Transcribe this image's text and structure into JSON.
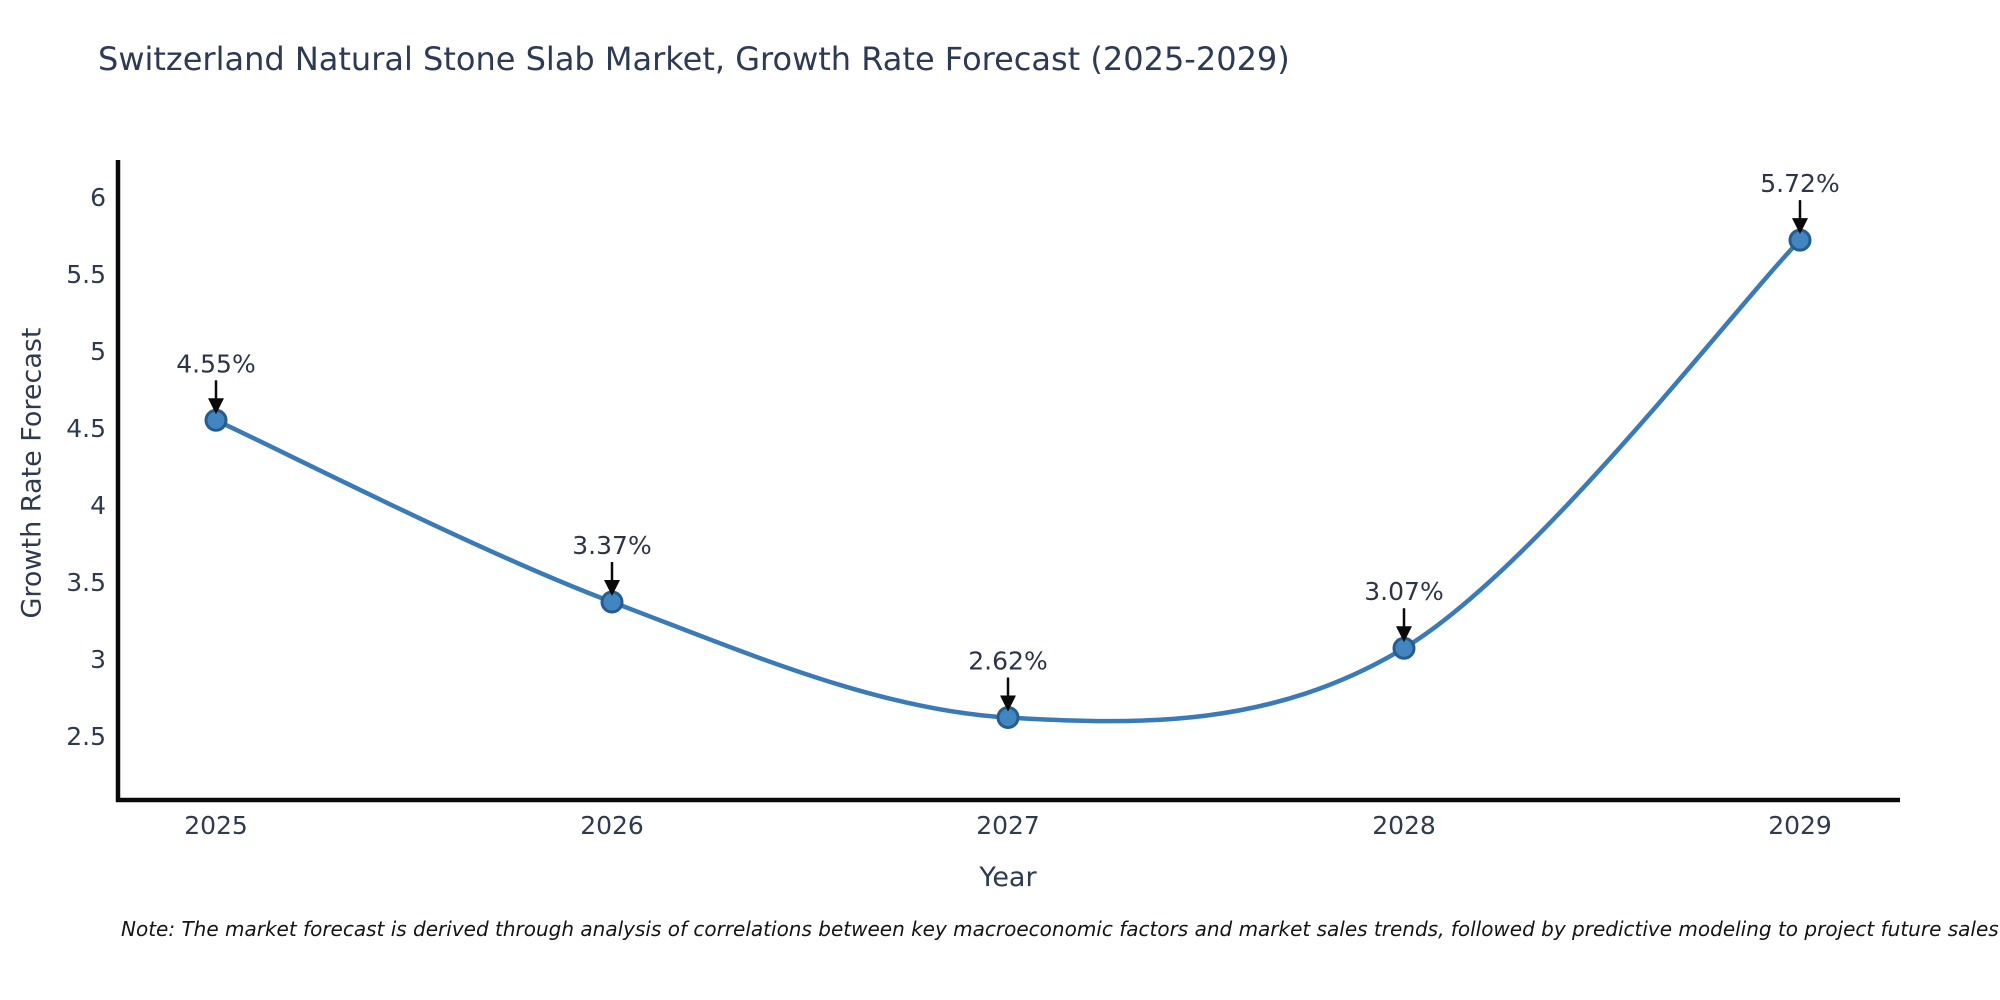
{
  "figure": {
    "note": "Note: The market forecast is derived through analysis of correlations between key macroeconomic factors and market sales trends, followed by predictive modeling to project future sales"
  },
  "chart_data": {
    "type": "line",
    "title": "Switzerland Natural Stone Slab Market, Growth Rate Forecast (2025-2029)",
    "xlabel": "Year",
    "ylabel": "Growth Rate Forecast",
    "x": [
      2025,
      2026,
      2027,
      2028,
      2029
    ],
    "x_tick_labels": [
      "2025",
      "2026",
      "2027",
      "2028",
      "2029"
    ],
    "values": [
      4.55,
      3.37,
      2.62,
      3.07,
      5.72
    ],
    "point_labels": [
      "4.55%",
      "3.37%",
      "2.62%",
      "3.07%",
      "5.72%"
    ],
    "y_ticks": [
      6,
      5.5,
      5,
      4.5,
      4,
      3.5,
      3,
      2.5
    ],
    "y_tick_labels": [
      "6",
      "5.5",
      "5",
      "4.5",
      "4",
      "3.5",
      "3",
      "2.5"
    ],
    "ylim": [
      2.09,
      6.24
    ],
    "xlim": [
      2024.75,
      2029.25
    ],
    "grid": false,
    "legend": false,
    "marker_size": 10,
    "line_width": 4.5,
    "colors": {
      "line": "#3a7ab6",
      "marker_fill": "#4186c0",
      "marker_edge": "#265c8e",
      "axis": "#0a0a0a",
      "arrow": "#0a0a0a",
      "title_text": "#2c3a54",
      "tick_text": "#2e3a4e",
      "annotation_text": "#2c3547",
      "note_text": "#121418",
      "background": "#ffffff"
    }
  }
}
